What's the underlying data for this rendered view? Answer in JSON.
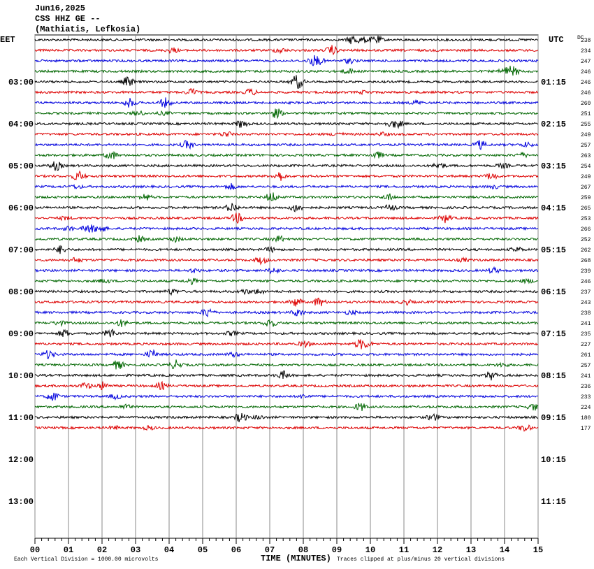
{
  "header": {
    "date": "Jun16,2025",
    "station": "CSS HHZ GE --",
    "location": "(Mathiatis, Lefkosia)"
  },
  "left_zone": "EET",
  "right_zone": "UTC",
  "dc_label": "DC",
  "left_times": [
    "03:00",
    "04:00",
    "05:00",
    "06:00",
    "07:00",
    "08:00",
    "09:00",
    "10:00",
    "11:00",
    "12:00",
    "13:00"
  ],
  "right_times": [
    "01:15",
    "02:15",
    "03:15",
    "04:15",
    "05:15",
    "06:15",
    "07:15",
    "08:15",
    "09:15",
    "10:15",
    "11:15"
  ],
  "dc_values": [
    238,
    234,
    247,
    246,
    246,
    246,
    260,
    251,
    255,
    249,
    257,
    263,
    254,
    249,
    267,
    259,
    265,
    253,
    266,
    252,
    262,
    268,
    239,
    246,
    237,
    243,
    238,
    241,
    235,
    227,
    261,
    257,
    241,
    236,
    233,
    224,
    180,
    177
  ],
  "x_ticks": [
    "00",
    "01",
    "02",
    "03",
    "04",
    "05",
    "06",
    "07",
    "08",
    "09",
    "10",
    "11",
    "12",
    "13",
    "14",
    "15"
  ],
  "x_label": "TIME (MINUTES)",
  "footer_left": "Each Vertical Division = 1000.00 microvolts",
  "footer_right": "Traces clipped at plus/minus 20 vertical divisions"
}
